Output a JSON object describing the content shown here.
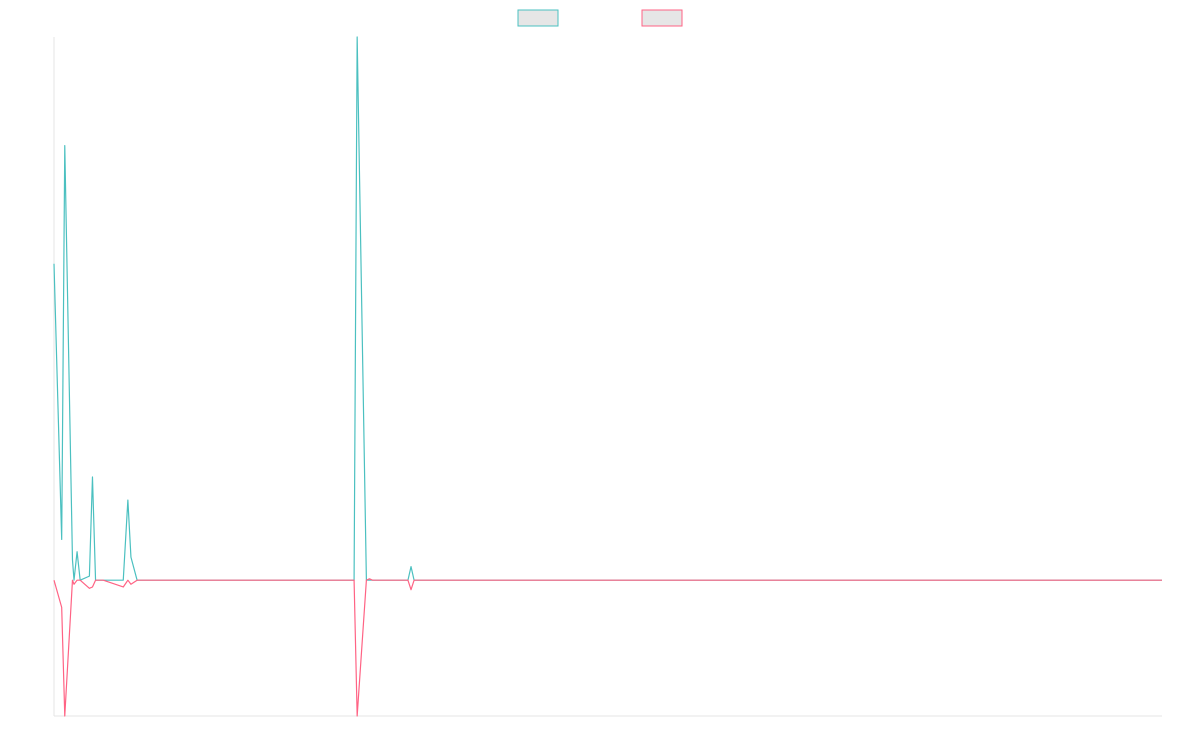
{
  "chart_data": {
    "type": "line",
    "title": "",
    "xlabel": "",
    "ylabel": "",
    "grid": false,
    "legend_position": "top-center",
    "xlim": [
      0,
      720
    ],
    "ylim": [
      -1000,
      4000
    ],
    "x": [
      0,
      5,
      7,
      12,
      13,
      15,
      17,
      23,
      25,
      27,
      32,
      45,
      48,
      50,
      54,
      195,
      197,
      203,
      205,
      207,
      230,
      232,
      234,
      236,
      720
    ],
    "series": [
      {
        "name": "",
        "color": "#4bc0c0",
        "fill": "#e6e6e6",
        "values": [
          2330,
          300,
          3200,
          150,
          0,
          210,
          0,
          30,
          760,
          0,
          0,
          0,
          590,
          170,
          0,
          0,
          4000,
          0,
          0,
          0,
          0,
          100,
          0,
          0,
          0
        ]
      },
      {
        "name": "",
        "color": "#ff6384",
        "fill": "#e6e6e6",
        "values": [
          0,
          -200,
          -1000,
          0,
          -30,
          0,
          0,
          -60,
          -50,
          0,
          0,
          -50,
          0,
          -30,
          0,
          0,
          -1000,
          0,
          10,
          0,
          0,
          -70,
          0,
          0,
          0
        ]
      }
    ]
  }
}
